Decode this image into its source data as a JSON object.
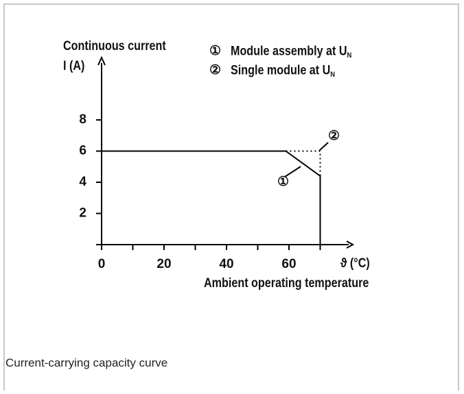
{
  "chart_data": {
    "type": "line",
    "ylabel": [
      "Continuous current",
      "I (A)"
    ],
    "xlabel_unit": "ϑ (°C)",
    "xlabel": "Ambient operating temperature",
    "xlim": [
      0,
      80
    ],
    "xticks": [
      0,
      20,
      40,
      60
    ],
    "xminor": [
      10,
      30,
      50,
      70
    ],
    "ylim": [
      0,
      12
    ],
    "yticks": [
      2,
      4,
      6,
      8
    ],
    "series": [
      {
        "marker": "①",
        "name": "Module assembly at U",
        "name_sub": "N",
        "color": "#000000",
        "style": "solid",
        "x": [
          0,
          59,
          70,
          70
        ],
        "values": [
          6,
          6,
          4.4,
          0
        ]
      },
      {
        "marker": "②",
        "name": "Single module at U",
        "name_sub": "N",
        "color": "#000000",
        "style": "dotted",
        "x": [
          59,
          70,
          70
        ],
        "values": [
          6,
          6,
          4.4
        ]
      }
    ]
  },
  "caption": "Current-carrying capacity curve"
}
